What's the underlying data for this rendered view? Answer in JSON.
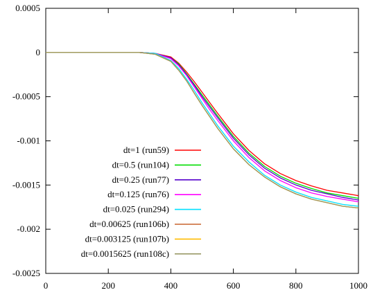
{
  "chart_data": {
    "type": "line",
    "title": "",
    "xlabel": "",
    "ylabel": "",
    "xlim": [
      0,
      1000
    ],
    "ylim": [
      -0.0025,
      0.0005
    ],
    "grid": false,
    "legend_position": "center",
    "x_ticks": [
      0,
      200,
      400,
      600,
      800,
      1000
    ],
    "x_tick_labels": [
      "0",
      "200",
      "400",
      "600",
      "800",
      "1000"
    ],
    "y_ticks": [
      0.0005,
      0,
      -0.0005,
      -0.001,
      -0.0015,
      -0.002,
      -0.0025
    ],
    "y_tick_labels": [
      "0.0005",
      "0",
      "-0.0005",
      "-0.001",
      "-0.0015",
      "-0.002",
      "-0.0025"
    ],
    "x": [
      0,
      100,
      200,
      300,
      350,
      400,
      425,
      450,
      475,
      500,
      525,
      550,
      600,
      650,
      700,
      750,
      800,
      850,
      900,
      950,
      1000
    ],
    "series": [
      {
        "name": "dt=1 (run59)",
        "color": "#ff0000",
        "values": [
          0,
          0,
          0,
          0,
          -1e-05,
          -5e-05,
          -0.00012,
          -0.00022,
          -0.00033,
          -0.00045,
          -0.00057,
          -0.00069,
          -0.00092,
          -0.00111,
          -0.00126,
          -0.00137,
          -0.00145,
          -0.00151,
          -0.00156,
          -0.00159,
          -0.00162
        ]
      },
      {
        "name": "dt=0.5 (run104)",
        "color": "#00dd00",
        "values": [
          0,
          0,
          0,
          0,
          -1e-05,
          -6e-05,
          -0.00013,
          -0.00024,
          -0.00036,
          -0.00048,
          -0.0006,
          -0.00072,
          -0.00095,
          -0.00114,
          -0.00129,
          -0.0014,
          -0.00148,
          -0.00154,
          -0.00159,
          -0.00162,
          -0.00165
        ]
      },
      {
        "name": "dt=0.25 (run77)",
        "color": "#5500cc",
        "values": [
          0,
          0,
          0,
          0,
          -1e-05,
          -6e-05,
          -0.00014,
          -0.00025,
          -0.00037,
          -0.0005,
          -0.00062,
          -0.00074,
          -0.00097,
          -0.00116,
          -0.00131,
          -0.00142,
          -0.0015,
          -0.00156,
          -0.0016,
          -0.00164,
          -0.00167
        ]
      },
      {
        "name": "dt=0.125 (run76)",
        "color": "#ff00ff",
        "values": [
          0,
          0,
          0,
          0,
          -1e-05,
          -7e-05,
          -0.00015,
          -0.00026,
          -0.00039,
          -0.00052,
          -0.00065,
          -0.00077,
          -0.001,
          -0.00119,
          -0.00134,
          -0.00145,
          -0.00153,
          -0.00159,
          -0.00163,
          -0.00166,
          -0.00169
        ]
      },
      {
        "name": "dt=0.025 (run294)",
        "color": "#00e0ff",
        "values": [
          0,
          0,
          0,
          0,
          -1e-05,
          -9e-05,
          -0.00018,
          -0.0003,
          -0.00043,
          -0.00057,
          -0.0007,
          -0.00083,
          -0.00106,
          -0.00124,
          -0.00139,
          -0.0015,
          -0.00158,
          -0.00164,
          -0.00168,
          -0.00172,
          -0.00174
        ]
      },
      {
        "name": "dt=0.00625 (run106b)",
        "color": "#c8642d",
        "values": [
          0,
          0,
          0,
          0,
          -2e-05,
          -0.0001,
          -0.0002,
          -0.00032,
          -0.00046,
          -0.0006,
          -0.00073,
          -0.00086,
          -0.00109,
          -0.00127,
          -0.00141,
          -0.00152,
          -0.0016,
          -0.00166,
          -0.0017,
          -0.00174,
          -0.00176
        ]
      },
      {
        "name": "dt=0.003125 (run107b)",
        "color": "#ffbb00",
        "values": [
          0,
          0,
          0,
          0,
          -2e-05,
          -0.0001,
          -0.0002,
          -0.00032,
          -0.00046,
          -0.0006,
          -0.00073,
          -0.00086,
          -0.00109,
          -0.00127,
          -0.00141,
          -0.00152,
          -0.0016,
          -0.00166,
          -0.0017,
          -0.00174,
          -0.00176
        ]
      },
      {
        "name": "dt=0.0015625 (run108c)",
        "color": "#999966",
        "values": [
          0,
          0,
          0,
          0,
          -2e-05,
          -0.0001,
          -0.0002,
          -0.00032,
          -0.00046,
          -0.0006,
          -0.00073,
          -0.00086,
          -0.00109,
          -0.00127,
          -0.00141,
          -0.00152,
          -0.0016,
          -0.00166,
          -0.0017,
          -0.00174,
          -0.00176
        ]
      }
    ]
  }
}
